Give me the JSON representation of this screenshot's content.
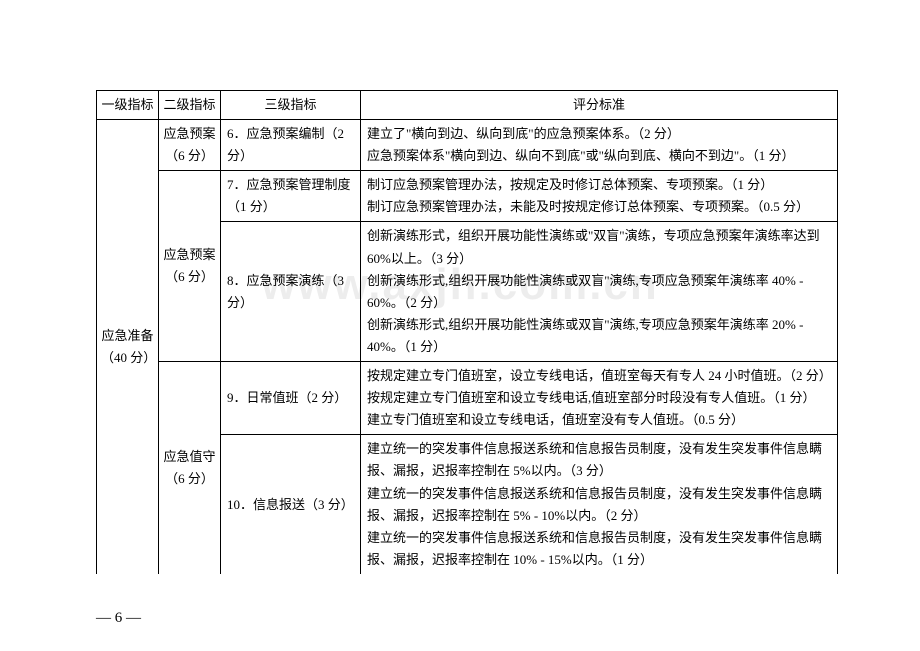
{
  "watermark": "www.axjh.com.cn",
  "pagenum": "— 6 —",
  "headers": {
    "h1": "一级指标",
    "h2": "二级指标",
    "h3": "三级指标",
    "h4": "评分标准"
  },
  "col1": {
    "a": "应急准备（40 分）"
  },
  "col2": {
    "g1": "应急预案（6 分）",
    "g2": "应急预案（6 分）",
    "g3": "应急值守（6 分）"
  },
  "col3": {
    "i6": "6．应急预案编制（2 分）",
    "i7": "7．应急预案管理制度（1 分）",
    "i8": "8．应急预案演练（3 分）",
    "i9": "9．日常值班（2 分）",
    "i10": "10．信息报送（3 分）"
  },
  "criteria": {
    "r6": "建立了\"横向到边、纵向到底\"的应急预案体系。（2 分）\n应急预案体系\"横向到边、纵向不到底\"或\"纵向到底、横向不到边\"。（1 分）",
    "r7": "制订应急预案管理办法，按规定及时修订总体预案、专项预案。（1 分）\n制订应急预案管理办法，未能及时按规定修订总体预案、专项预案。（0.5 分）",
    "r8": "创新演练形式，组织开展功能性演练或\"双盲\"演练，专项应急预案年演练率达到 60%以上。（3 分）\n创新演练形式,组织开展功能性演练或双盲\"演练,专项应急预案年演练率 40% - 60%。（2 分）\n创新演练形式,组织开展功能性演练或双盲\"演练,专项应急预案年演练率 20% - 40%。（1 分）",
    "r9": "按规定建立专门值班室，设立专线电话，值班室每天有专人 24 小时值班。（2 分）\n按规定建立专门值班室和设立专线电话,值班室部分时段没有专人值班。（1 分）\n建立专门值班室和设立专线电话，值班室没有专人值班。（0.5 分）",
    "r10": "建立统一的突发事件信息报送系统和信息报告员制度，没有发生突发事件信息瞒报、漏报，迟报率控制在 5%以内。（3 分）\n建立统一的突发事件信息报送系统和信息报告员制度，没有发生突发事件信息瞒报、漏报，迟报率控制在 5% - 10%以内。（2 分）\n建立统一的突发事件信息报送系统和信息报告员制度，没有发生突发事件信息瞒报、漏报，迟报率控制在 10% - 15%以内。（1 分）"
  }
}
